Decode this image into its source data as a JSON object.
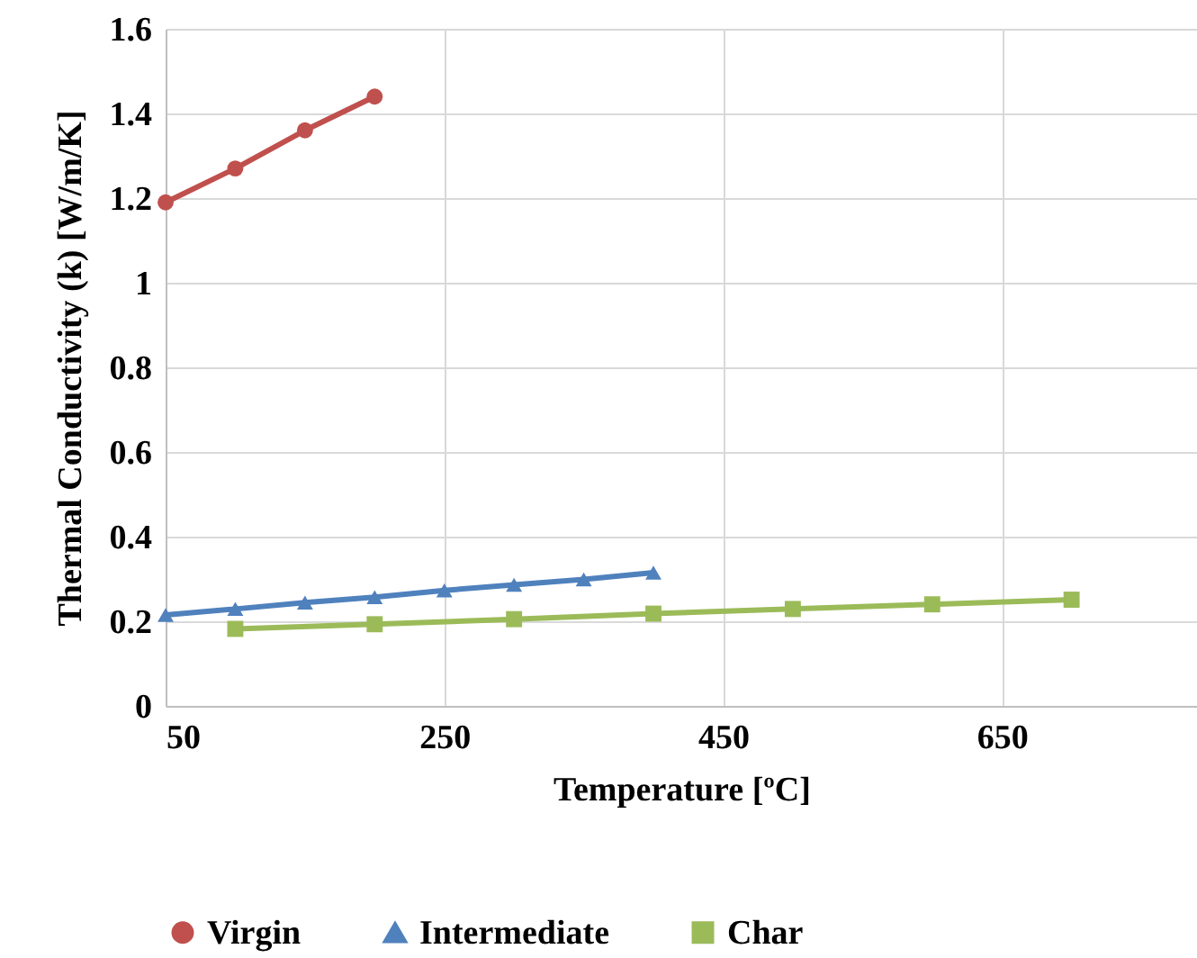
{
  "chart_data": {
    "type": "line",
    "xlabel": "Temperature [ºC]",
    "ylabel": "Thermal Conductivity (k) [W/m/K]",
    "xlim": [
      50,
      790
    ],
    "xticks": [
      50,
      250,
      450,
      650
    ],
    "ylim": [
      0,
      1.6
    ],
    "yticks": [
      0,
      0.2,
      0.4,
      0.6,
      0.8,
      1,
      1.2,
      1.4,
      1.6
    ],
    "grid": true,
    "legend": "bottom",
    "series": [
      {
        "name": "Virgin",
        "color": "#c0504d",
        "marker": "circle",
        "x": [
          50,
          100,
          150,
          200
        ],
        "values": [
          1.19,
          1.27,
          1.36,
          1.44
        ]
      },
      {
        "name": "Intermediate",
        "color": "#4f81bd",
        "marker": "triangle",
        "x": [
          50,
          100,
          150,
          200,
          250,
          300,
          350,
          400
        ],
        "values": [
          0.215,
          0.229,
          0.244,
          0.257,
          0.273,
          0.286,
          0.299,
          0.315
        ]
      },
      {
        "name": "Char",
        "color": "#9bbb59",
        "marker": "square",
        "x": [
          100,
          200,
          300,
          400,
          500,
          600,
          700
        ],
        "values": [
          0.182,
          0.193,
          0.205,
          0.218,
          0.229,
          0.24,
          0.251
        ]
      }
    ]
  }
}
